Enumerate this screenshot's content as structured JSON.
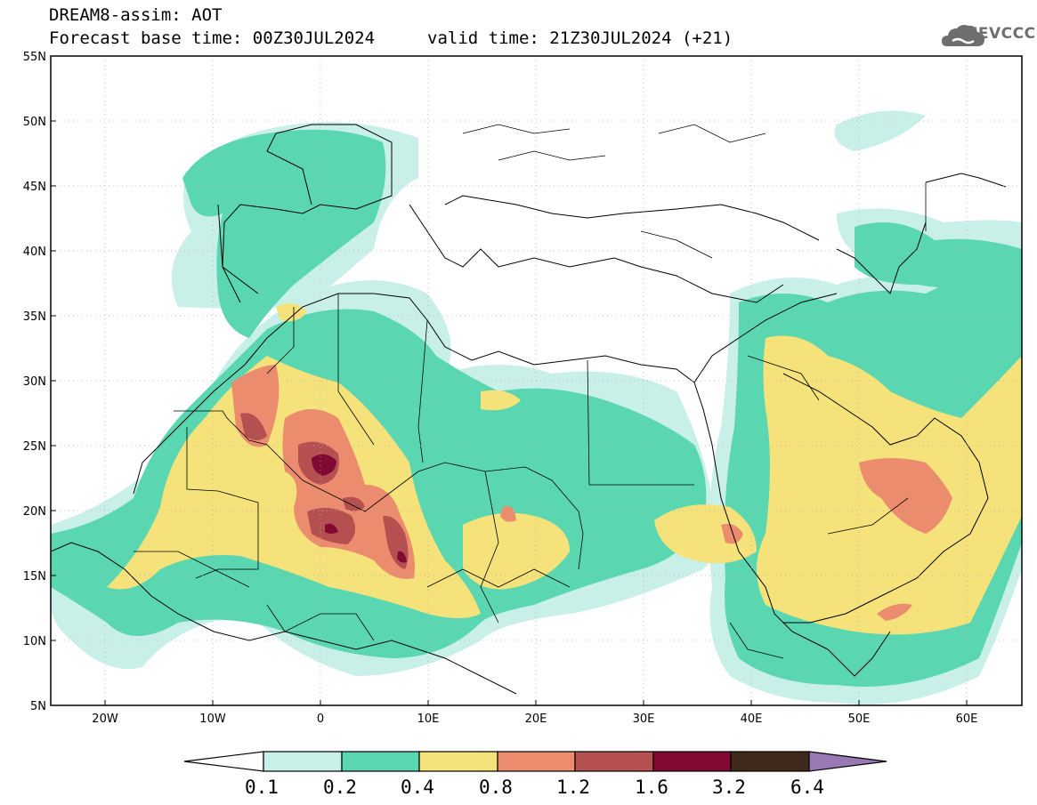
{
  "header": {
    "title": "DREAM8-assim: AOT",
    "base_time": "Forecast base time: 00Z30JUL2024",
    "valid_time": "valid time: 21Z30JUL2024 (+21)"
  },
  "logo": {
    "text": "SEEVCCC",
    "icon": "cloud-logo-icon"
  },
  "map": {
    "lat_labels": [
      "55N",
      "50N",
      "45N",
      "40N",
      "35N",
      "30N",
      "25N",
      "20N",
      "15N",
      "10N",
      "5N"
    ],
    "lon_labels": [
      "20W",
      "10W",
      "0",
      "10E",
      "20E",
      "30E",
      "40E",
      "50E",
      "60E"
    ],
    "lon_range": [
      -25,
      65
    ],
    "lat_range": [
      5,
      55
    ]
  },
  "colorbar": {
    "levels": [
      "0.1",
      "0.2",
      "0.4",
      "0.8",
      "1.2",
      "1.6",
      "3.2",
      "6.4"
    ],
    "colors": [
      "#c8f0e8",
      "#5ad7b0",
      "#f5e27a",
      "#eb8c6e",
      "#b45050",
      "#820a32",
      "#40281a",
      "#9a78b4"
    ],
    "under_color": "#ffffff"
  }
}
